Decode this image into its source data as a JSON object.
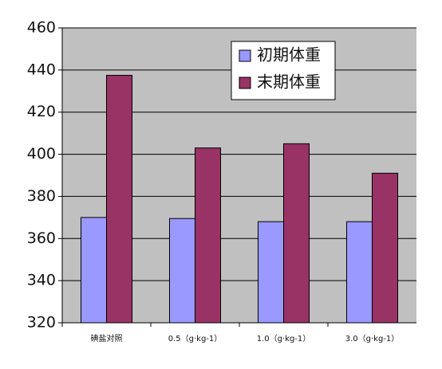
{
  "chart_data": {
    "type": "bar",
    "categories": [
      "碘盐对照",
      "0.5（g·kg-1）",
      "1.0（g·kg-1）",
      "3.0（g·kg-1）"
    ],
    "series": [
      {
        "name": "初期体重",
        "color": "#9999ff",
        "values": [
          370,
          369.5,
          368,
          368
        ]
      },
      {
        "name": "末期体重",
        "color": "#993366",
        "values": [
          437.5,
          403,
          405,
          391
        ]
      }
    ],
    "ylim": [
      320,
      460
    ],
    "yticks": [
      320,
      340,
      360,
      380,
      400,
      420,
      440,
      460
    ],
    "grid": true,
    "legend": "upper-right"
  }
}
